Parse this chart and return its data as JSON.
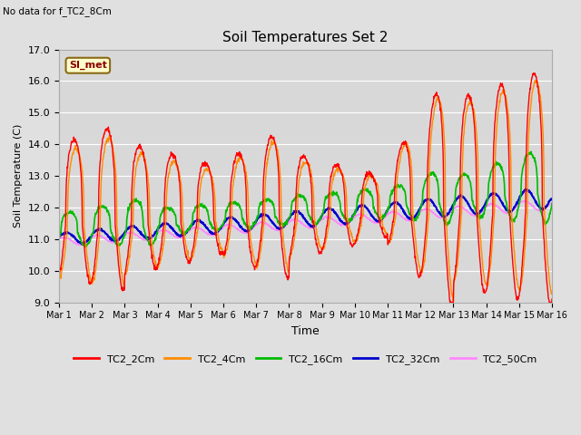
{
  "title": "Soil Temperatures Set 2",
  "suptitle_left": "No data for f_TC2_8Cm",
  "ylabel": "Soil Temperature (C)",
  "xlabel": "Time",
  "ylim": [
    9.0,
    17.0
  ],
  "yticks": [
    9.0,
    10.0,
    11.0,
    12.0,
    13.0,
    14.0,
    15.0,
    16.0,
    17.0
  ],
  "xtick_labels": [
    "Mar 1",
    "Mar 2",
    "Mar 3",
    "Mar 4",
    "Mar 5",
    "Mar 6",
    "Mar 7",
    "Mar 8",
    "Mar 9",
    "Mar 10",
    "Mar 11",
    "Mar 12",
    "Mar 13",
    "Mar 14",
    "Mar 15",
    "Mar 16"
  ],
  "n_days": 15,
  "background_color": "#e0e0e0",
  "plot_bg_color": "#d8d8d8",
  "grid_color": "#ffffff",
  "legend_label": "SI_met",
  "legend_bg": "#ffffcc",
  "legend_border": "#8b6914",
  "series": [
    {
      "label": "TC2_2Cm",
      "color": "#ff0000",
      "lw": 1.0
    },
    {
      "label": "TC2_4Cm",
      "color": "#ff8c00",
      "lw": 1.0
    },
    {
      "label": "TC2_16Cm",
      "color": "#00bb00",
      "lw": 1.2
    },
    {
      "label": "TC2_32Cm",
      "color": "#0000cc",
      "lw": 1.5
    },
    {
      "label": "TC2_50Cm",
      "color": "#ff88ff",
      "lw": 1.2
    }
  ]
}
